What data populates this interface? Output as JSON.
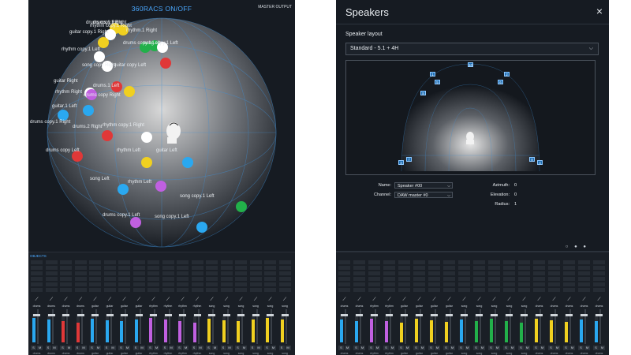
{
  "left": {
    "title": "360RACS ON/OFF",
    "master_output": "MASTER OUTPUT",
    "mixer_tab": "OBJECTS",
    "objects": [
      {
        "label": "drums copy.1 Right",
        "color": "#f0d020"
      },
      {
        "label": "rhythm copy.1 Right",
        "color": "#f0d020"
      },
      {
        "label": "drums.1 Right",
        "color": "#ffffff"
      },
      {
        "label": "guitar copy.1 Right",
        "color": "#f0d020"
      },
      {
        "label": "rhythm.1 Right",
        "color": "#22b04a"
      },
      {
        "label": "drums copy.1 Left",
        "color": "#22b04a"
      },
      {
        "label": "song copy.1 Left",
        "color": "#ffffff"
      },
      {
        "label": "rhythm copy.1 Left",
        "color": "#ffffff"
      },
      {
        "label": "guitar copy Left",
        "color": "#e03838"
      },
      {
        "label": "song copy Right",
        "color": "#ffffff"
      },
      {
        "label": "drums.1 Left",
        "color": "#e03838"
      },
      {
        "label": "guitar Right",
        "color": "#ffffff"
      },
      {
        "label": "rhythm Right",
        "color": "#c060e0"
      },
      {
        "label": "drums copy Right",
        "color": "#f0d020"
      },
      {
        "label": "guitar.1 Left",
        "color": "#2aa8f0"
      },
      {
        "label": "drums copy.1 Right",
        "color": "#2aa8f0"
      },
      {
        "label": "drums.2 Right",
        "color": "#e03838"
      },
      {
        "label": "rhythm copy.1 Right",
        "color": "#ffffff"
      },
      {
        "label": "drums copy Left",
        "color": "#e03838"
      },
      {
        "label": "rhythm Left",
        "color": "#f0d020"
      },
      {
        "label": "guitar Left",
        "color": "#2aa8f0"
      },
      {
        "label": "song Left",
        "color": "#2aa8f0"
      },
      {
        "label": "rhythm Left",
        "color": "#c060e0"
      },
      {
        "label": "song copy.1 Left",
        "color": "#22b04a"
      },
      {
        "label": "drums copy.1 Left",
        "color": "#c060e0"
      },
      {
        "label": "song copy.1 Left",
        "color": "#2aa8f0"
      }
    ],
    "strips": [
      {
        "name": "drums",
        "color": "#2aa8f0",
        "foot": "drums"
      },
      {
        "name": "drums",
        "color": "#2aa8f0",
        "foot": "drums"
      },
      {
        "name": "drums",
        "color": "#e03838",
        "foot": "drums"
      },
      {
        "name": "drums",
        "color": "#e03838",
        "foot": "drums"
      },
      {
        "name": "guitar",
        "color": "#2aa8f0",
        "foot": "guitar"
      },
      {
        "name": "guitar",
        "color": "#2aa8f0",
        "foot": "guitar"
      },
      {
        "name": "guitar",
        "color": "#2aa8f0",
        "foot": "guitar"
      },
      {
        "name": "guitar",
        "color": "#2aa8f0",
        "foot": "guitar"
      },
      {
        "name": "rhythm",
        "color": "#c060e0",
        "foot": "rhythm"
      },
      {
        "name": "rhythm",
        "color": "#c060e0",
        "foot": "rhythm"
      },
      {
        "name": "rhythm",
        "color": "#c060e0",
        "foot": "rhythm"
      },
      {
        "name": "rhythm",
        "color": "#c060e0",
        "foot": "rhythm"
      },
      {
        "name": "song",
        "color": "#f0d020",
        "foot": "song"
      },
      {
        "name": "song",
        "color": "#f0d020",
        "foot": "song"
      },
      {
        "name": "song",
        "color": "#f0d020",
        "foot": "song"
      },
      {
        "name": "song",
        "color": "#f0d020",
        "foot": "song"
      },
      {
        "name": "song",
        "color": "#f0d020",
        "foot": "song"
      },
      {
        "name": "song",
        "color": "#f0d020",
        "foot": "song"
      }
    ]
  },
  "right": {
    "title": "Speakers",
    "close_icon": "×",
    "layout_label": "Speaker layout",
    "layout_value": "Standard - 5.1 + 4H",
    "speakers": [
      {
        "id": "10"
      },
      {
        "id": "1"
      },
      {
        "id": "5"
      },
      {
        "id": "6"
      },
      {
        "id": "2"
      },
      {
        "id": "8"
      },
      {
        "id": "3"
      },
      {
        "id": "7"
      },
      {
        "id": "8"
      },
      {
        "id": "4"
      }
    ],
    "form": {
      "name_label": "Name:",
      "name_value": "Speaker #00",
      "channel_label": "Channel:",
      "channel_value": "DAW master #0",
      "azimuth_label": "Azimuth:",
      "azimuth_value": "0",
      "elevation_label": "Elevation:",
      "elevation_value": "0",
      "radius_label": "Radius:",
      "radius_value": "1"
    },
    "strips": [
      {
        "name": "drums",
        "color": "#2aa8f0"
      },
      {
        "name": "drums",
        "color": "#2aa8f0"
      },
      {
        "name": "rhythm",
        "color": "#c060e0"
      },
      {
        "name": "rhythm",
        "color": "#c060e0"
      },
      {
        "name": "guitar",
        "color": "#f0d020"
      },
      {
        "name": "guitar",
        "color": "#f0d020"
      },
      {
        "name": "guitar",
        "color": "#f0d020"
      },
      {
        "name": "guitar",
        "color": "#f0d020"
      },
      {
        "name": "song",
        "color": "#2aa8f0"
      },
      {
        "name": "song",
        "color": "#22b04a"
      },
      {
        "name": "song",
        "color": "#22b04a"
      },
      {
        "name": "song",
        "color": "#22b04a"
      },
      {
        "name": "song",
        "color": "#22b04a"
      },
      {
        "name": "drums",
        "color": "#f0d020"
      },
      {
        "name": "drums",
        "color": "#f0d020"
      },
      {
        "name": "drums",
        "color": "#f0d020"
      },
      {
        "name": "drums",
        "color": "#2aa8f0"
      },
      {
        "name": "drums",
        "color": "#2aa8f0"
      }
    ]
  }
}
